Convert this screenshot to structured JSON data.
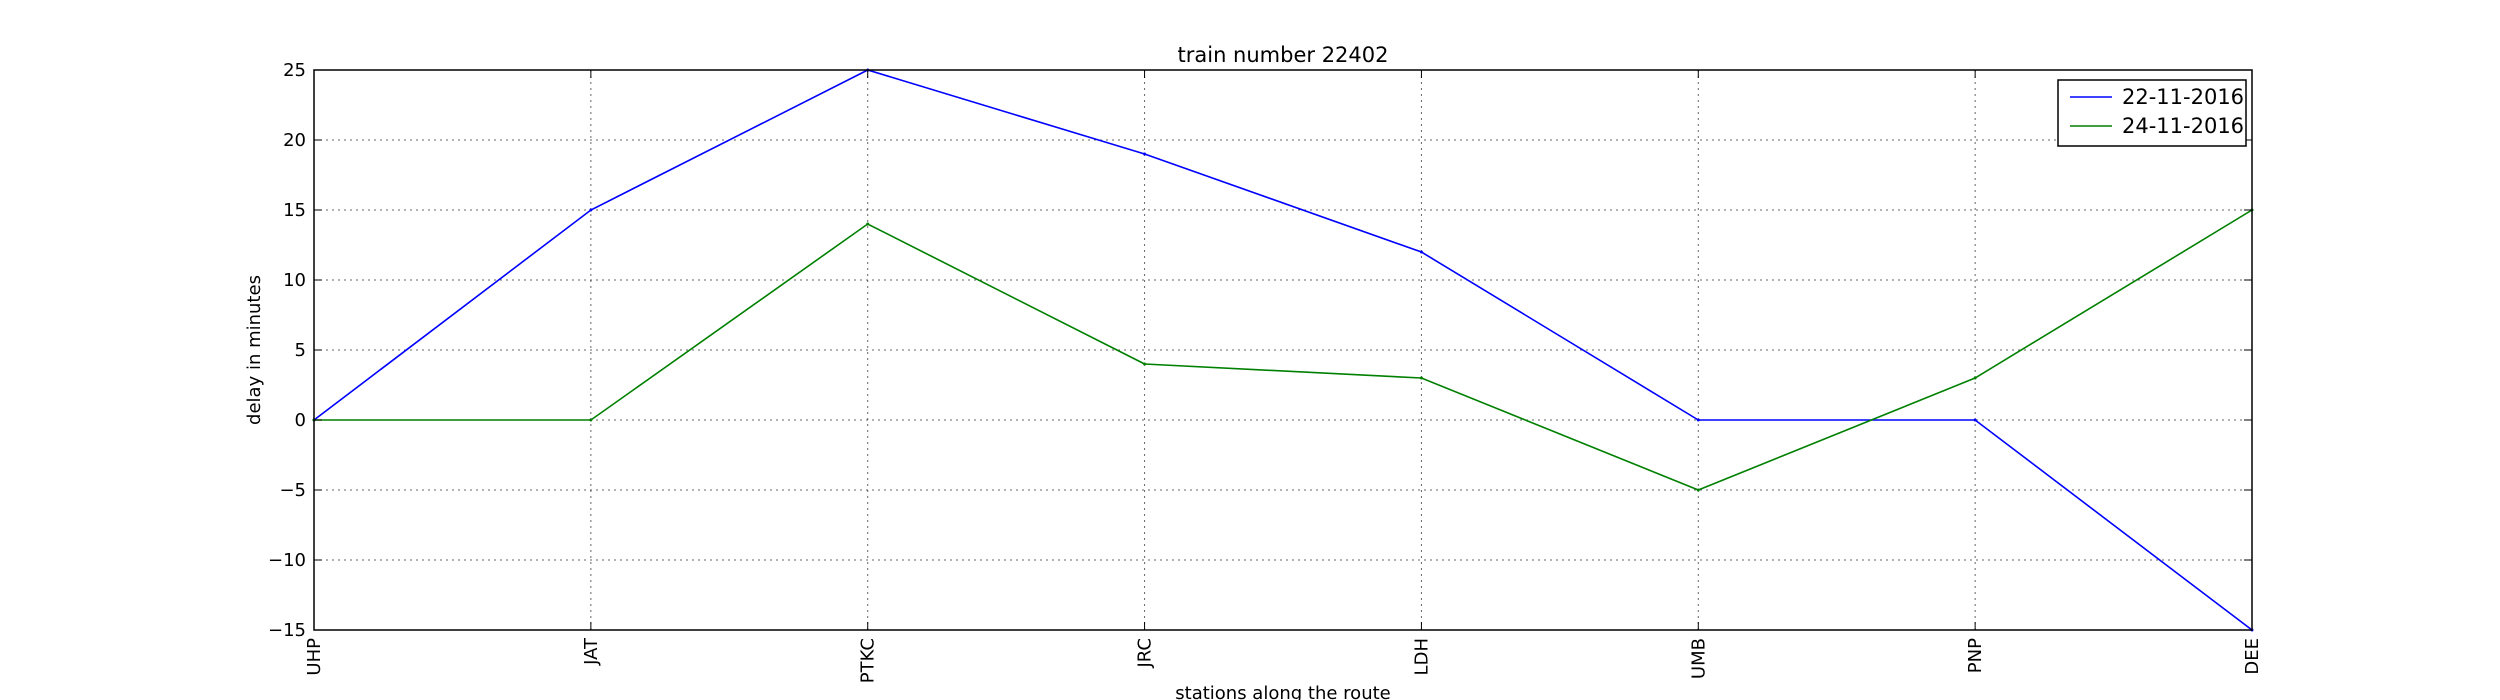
{
  "chart_data": {
    "type": "line",
    "title": "train number 22402",
    "xlabel": "stations along the route",
    "ylabel": "delay in minutes",
    "categories": [
      "UHP",
      "JAT",
      "PTKC",
      "JRC",
      "LDH",
      "UMB",
      "PNP",
      "DEE"
    ],
    "ylim": [
      -15,
      25
    ],
    "yticks": [
      -15,
      -10,
      -5,
      0,
      5,
      10,
      15,
      20,
      25
    ],
    "ytick_labels": [
      "−15",
      "−10",
      "−5",
      "0",
      "5",
      "10",
      "15",
      "20",
      "25"
    ],
    "grid": true,
    "legend_position": "top-right",
    "series": [
      {
        "name": "22-11-2016",
        "color": "#0000ff",
        "values": [
          0,
          15,
          25,
          19,
          12,
          0,
          0,
          -15
        ]
      },
      {
        "name": "24-11-2016",
        "color": "#008000",
        "values": [
          0,
          0,
          14,
          4,
          3,
          -5,
          3,
          15
        ]
      }
    ]
  }
}
